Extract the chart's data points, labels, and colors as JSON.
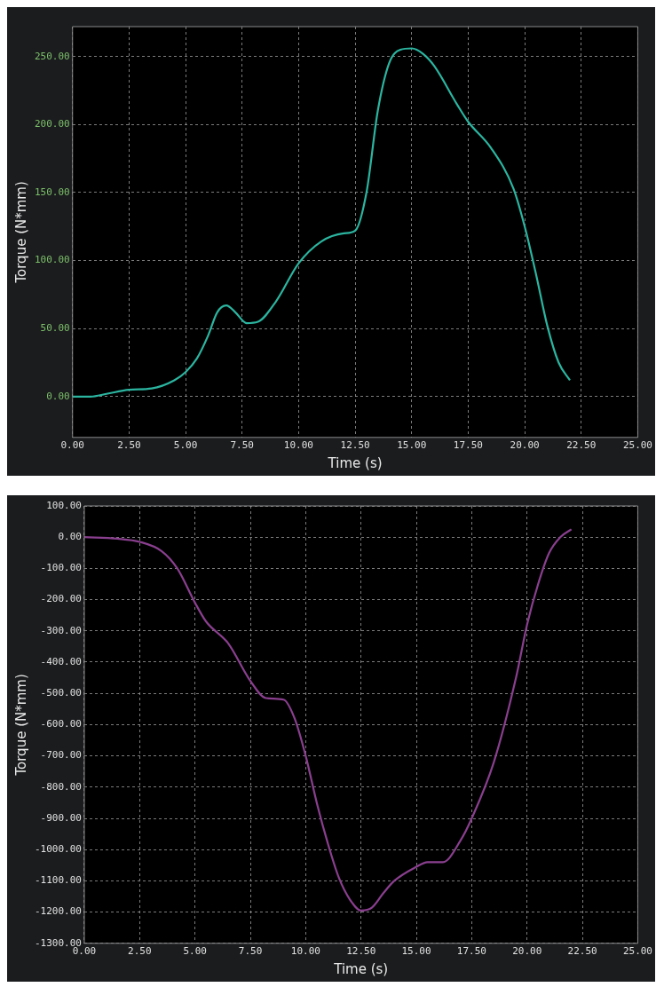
{
  "chart_data": [
    {
      "type": "line",
      "xlabel": "Time (s)",
      "ylabel": "Torque (N*mm)",
      "xlim": [
        0,
        25
      ],
      "ylim": [
        -30,
        272
      ],
      "xticks": [
        {
          "value": 0,
          "label": "0.00"
        },
        {
          "value": 2.5,
          "label": "2.50"
        },
        {
          "value": 5,
          "label": "5.00"
        },
        {
          "value": 7.5,
          "label": "7.50"
        },
        {
          "value": 10,
          "label": "10.00"
        },
        {
          "value": 12.5,
          "label": "12.50"
        },
        {
          "value": 15,
          "label": "15.00"
        },
        {
          "value": 17.5,
          "label": "17.50"
        },
        {
          "value": 20,
          "label": "20.00"
        },
        {
          "value": 22.5,
          "label": "22.50"
        },
        {
          "value": 25,
          "label": "25.00"
        }
      ],
      "yticks": [
        {
          "value": 0,
          "label": "0.00"
        },
        {
          "value": 50,
          "label": "50.00"
        },
        {
          "value": 100,
          "label": "100.00"
        },
        {
          "value": 150,
          "label": "150.00"
        },
        {
          "value": 200,
          "label": "200.00"
        },
        {
          "value": 250,
          "label": "250.00"
        }
      ],
      "grid": true,
      "marker": "none",
      "line_style": "solid",
      "x": [
        0,
        0.8,
        1.5,
        2.5,
        3.5,
        4.5,
        5,
        5.5,
        6,
        6.4,
        6.8,
        7.2,
        7.7,
        8.2,
        9,
        10,
        11,
        12,
        12.5,
        13,
        13.5,
        14,
        14.5,
        15,
        15.5,
        16,
        17,
        17.5,
        18.5,
        19.5,
        20,
        20.5,
        21,
        21.5,
        22
      ],
      "series": [
        {
          "color": "#2bb5a0",
          "values": [
            0,
            0,
            2,
            5,
            6,
            12,
            18,
            28,
            45,
            62,
            67,
            62,
            54,
            55,
            70,
            98,
            114,
            120,
            122,
            150,
            210,
            245,
            255,
            256,
            252,
            243,
            215,
            202,
            183,
            153,
            125,
            90,
            52,
            25,
            12
          ]
        }
      ]
    },
    {
      "type": "line",
      "xlabel": "Time (s)",
      "ylabel": "Torque (N*mm)",
      "xlim": [
        0,
        25
      ],
      "ylim": [
        -1300,
        100
      ],
      "xticks": [
        {
          "value": 0,
          "label": "0.00"
        },
        {
          "value": 2.5,
          "label": "2.50"
        },
        {
          "value": 5,
          "label": "5.00"
        },
        {
          "value": 7.5,
          "label": "7.50"
        },
        {
          "value": 10,
          "label": "10.00"
        },
        {
          "value": 12.5,
          "label": "12.50"
        },
        {
          "value": 15,
          "label": "15.00"
        },
        {
          "value": 17.5,
          "label": "17.50"
        },
        {
          "value": 20,
          "label": "20.00"
        },
        {
          "value": 22.5,
          "label": "22.50"
        },
        {
          "value": 25,
          "label": "25.00"
        }
      ],
      "yticks": [
        {
          "value": -1300,
          "label": "-1300.00"
        },
        {
          "value": -1200,
          "label": "-1200.00"
        },
        {
          "value": -1100,
          "label": "-1100.00"
        },
        {
          "value": -1000,
          "label": "-1000.00"
        },
        {
          "value": -900,
          "label": "-900.00"
        },
        {
          "value": -800,
          "label": "-800.00"
        },
        {
          "value": -700,
          "label": "-700.00"
        },
        {
          "value": -600,
          "label": "-600.00"
        },
        {
          "value": -500,
          "label": "-500.00"
        },
        {
          "value": -400,
          "label": "-400.00"
        },
        {
          "value": -300,
          "label": "-300.00"
        },
        {
          "value": -200,
          "label": "-200.00"
        },
        {
          "value": -100,
          "label": "-100.00"
        },
        {
          "value": 0,
          "label": "0.00"
        },
        {
          "value": 100,
          "label": "100.00"
        }
      ],
      "grid": true,
      "marker": "none",
      "line_style": "solid",
      "x": [
        0,
        1.5,
        2.5,
        3.5,
        4.2,
        5,
        5.5,
        6.5,
        7.5,
        8.2,
        9,
        9.5,
        10,
        10.5,
        11,
        11.5,
        12,
        12.5,
        13,
        13.5,
        14,
        15,
        15.5,
        16.2,
        17,
        17.5,
        18.5,
        19.5,
        20,
        20.5,
        21,
        21.5,
        22
      ],
      "series": [
        {
          "color": "#8a3f8f",
          "values": [
            0,
            -5,
            -15,
            -45,
            -100,
            -210,
            -270,
            -340,
            -460,
            -515,
            -520,
            -580,
            -700,
            -850,
            -980,
            -1090,
            -1160,
            -1195,
            -1185,
            -1140,
            -1100,
            -1055,
            -1040,
            -1040,
            -970,
            -900,
            -720,
            -450,
            -280,
            -150,
            -50,
            0,
            25
          ]
        }
      ]
    }
  ]
}
